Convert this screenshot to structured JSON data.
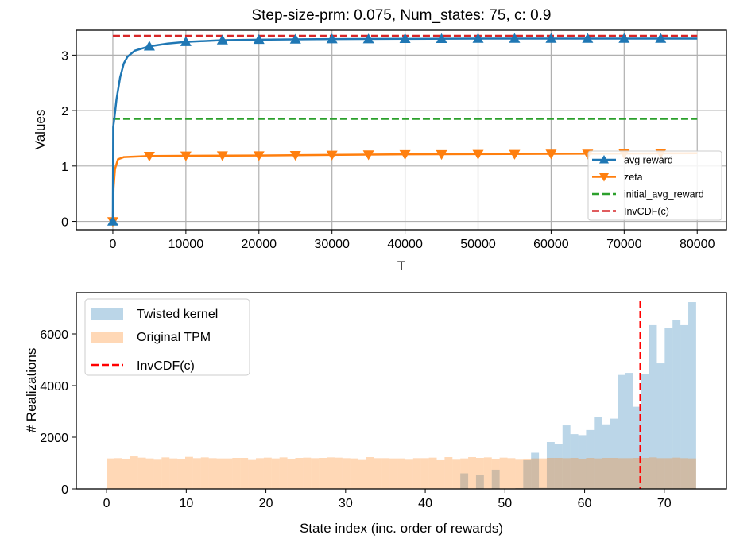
{
  "chart_data": [
    {
      "type": "line",
      "title": "Step-size-prm: 0.075, Num_states: 75, c: 0.9",
      "xlabel": "T",
      "ylabel": "Values",
      "xlim": [
        -5000,
        84000
      ],
      "ylim": [
        -0.15,
        3.45
      ],
      "xticks": [
        0,
        10000,
        20000,
        30000,
        40000,
        50000,
        60000,
        70000,
        80000
      ],
      "yticks": [
        0,
        1,
        2,
        3
      ],
      "grid": true,
      "legend_position": "lower-right",
      "series": [
        {
          "name": "avg reward",
          "color": "#1f77b4",
          "marker": "triangle-up",
          "points": [
            [
              0,
              0
            ],
            [
              50,
              1.7
            ],
            [
              200,
              1.85
            ],
            [
              500,
              2.2
            ],
            [
              1000,
              2.6
            ],
            [
              1500,
              2.85
            ],
            [
              2000,
              2.97
            ],
            [
              3000,
              3.08
            ],
            [
              5000,
              3.16
            ],
            [
              7500,
              3.21
            ],
            [
              10000,
              3.24
            ],
            [
              15000,
              3.27
            ],
            [
              20000,
              3.28
            ],
            [
              30000,
              3.29
            ],
            [
              50000,
              3.3
            ],
            [
              80000,
              3.3
            ]
          ],
          "markers": [
            [
              0,
              0
            ],
            [
              5000,
              3.16
            ],
            [
              10000,
              3.24
            ],
            [
              15000,
              3.27
            ],
            [
              20000,
              3.28
            ],
            [
              25000,
              3.285
            ],
            [
              30000,
              3.29
            ],
            [
              35000,
              3.29
            ],
            [
              40000,
              3.295
            ],
            [
              45000,
              3.295
            ],
            [
              50000,
              3.3
            ],
            [
              55000,
              3.3
            ],
            [
              60000,
              3.3
            ],
            [
              65000,
              3.3
            ],
            [
              70000,
              3.3
            ],
            [
              75000,
              3.3
            ]
          ]
        },
        {
          "name": "zeta",
          "color": "#ff7f0e",
          "marker": "triangle-down",
          "points": [
            [
              0,
              0
            ],
            [
              100,
              0.6
            ],
            [
              300,
              0.95
            ],
            [
              700,
              1.12
            ],
            [
              1500,
              1.16
            ],
            [
              5000,
              1.18
            ],
            [
              20000,
              1.19
            ],
            [
              40000,
              1.21
            ],
            [
              80000,
              1.23
            ]
          ],
          "markers": [
            [
              0,
              0
            ],
            [
              5000,
              1.18
            ],
            [
              10000,
              1.185
            ],
            [
              15000,
              1.19
            ],
            [
              20000,
              1.19
            ],
            [
              25000,
              1.195
            ],
            [
              30000,
              1.2
            ],
            [
              35000,
              1.205
            ],
            [
              40000,
              1.21
            ],
            [
              45000,
              1.21
            ],
            [
              50000,
              1.215
            ],
            [
              55000,
              1.215
            ],
            [
              60000,
              1.22
            ],
            [
              65000,
              1.22
            ],
            [
              70000,
              1.225
            ],
            [
              75000,
              1.23
            ]
          ]
        },
        {
          "name": "initial_avg_reward",
          "color": "#2ca02c",
          "dashed": true,
          "points": [
            [
              0,
              1.85
            ],
            [
              80000,
              1.85
            ]
          ]
        },
        {
          "name": "InvCDF(c)",
          "color": "#d62728",
          "dashed": true,
          "points": [
            [
              0,
              3.35
            ],
            [
              80000,
              3.35
            ]
          ]
        }
      ]
    },
    {
      "type": "bar",
      "title": "",
      "xlabel": "State index (inc. order of rewards)",
      "ylabel": "# Realizations",
      "xlim": [
        -3.8,
        77.8
      ],
      "ylim": [
        0,
        7600
      ],
      "xticks": [
        0,
        10,
        20,
        30,
        40,
        50,
        60,
        70
      ],
      "yticks": [
        0,
        2000,
        4000,
        6000
      ],
      "grid": false,
      "legend_position": "top-left",
      "bin_range": [
        0,
        74
      ],
      "num_bins": 75,
      "vline": {
        "name": "InvCDF(c)",
        "x": 67,
        "color": "#ff0000"
      },
      "series": [
        {
          "name": "Twisted kernel",
          "color": "#1f77b4",
          "alpha": 0.3,
          "values": [
            0,
            0,
            0,
            0,
            0,
            0,
            0,
            0,
            0,
            0,
            0,
            0,
            0,
            0,
            0,
            0,
            0,
            0,
            0,
            0,
            0,
            0,
            0,
            0,
            0,
            0,
            0,
            0,
            0,
            0,
            0,
            0,
            0,
            0,
            0,
            0,
            0,
            0,
            0,
            0,
            0,
            0,
            0,
            0,
            0,
            600,
            0,
            530,
            0,
            740,
            0,
            0,
            30,
            1130,
            1400,
            40,
            1815,
            1745,
            2460,
            2120,
            2080,
            2280,
            2770,
            2500,
            2720,
            4410,
            4490,
            3180,
            4430,
            6340,
            4860,
            6240,
            6530,
            6340,
            7230
          ]
        },
        {
          "name": "Original TPM",
          "color": "#ff7f0e",
          "alpha": 0.3,
          "values": [
            1180,
            1190,
            1170,
            1260,
            1210,
            1180,
            1160,
            1220,
            1180,
            1170,
            1240,
            1190,
            1220,
            1190,
            1180,
            1180,
            1200,
            1200,
            1150,
            1190,
            1210,
            1180,
            1220,
            1170,
            1200,
            1210,
            1190,
            1200,
            1220,
            1210,
            1190,
            1180,
            1150,
            1230,
            1190,
            1190,
            1180,
            1180,
            1160,
            1190,
            1190,
            1210,
            1140,
            1230,
            1160,
            1180,
            1230,
            1200,
            1220,
            1170,
            1210,
            1190,
            1160,
            1170,
            1180,
            1180,
            1200,
            1200,
            1190,
            1200,
            1170,
            1200,
            1180,
            1200,
            1200,
            1190,
            1190,
            1200,
            1200,
            1220,
            1190,
            1190,
            1210,
            1190,
            1180
          ]
        }
      ]
    }
  ]
}
